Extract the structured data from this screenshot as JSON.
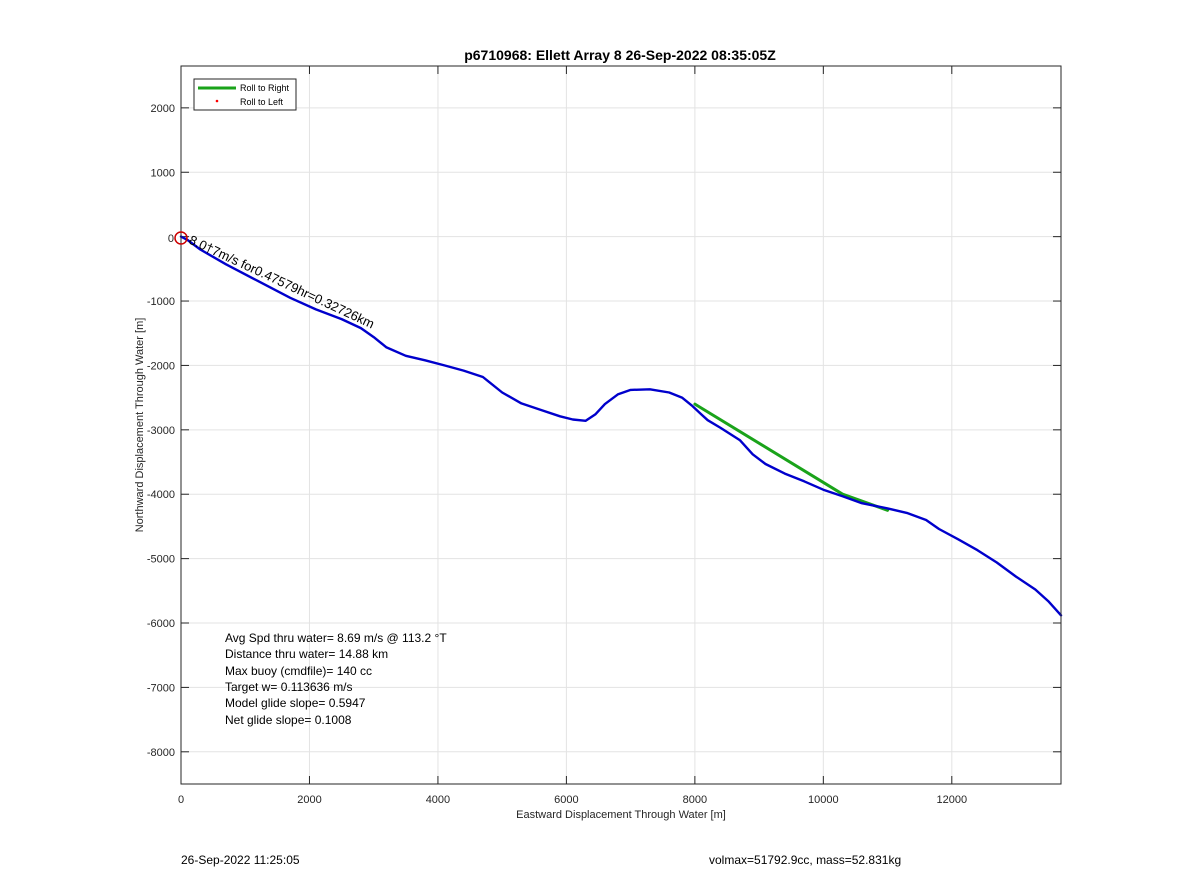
{
  "chart_data": {
    "type": "line",
    "title": "p6710968: Ellett Array 8 26-Sep-2022 08:35:05Z",
    "xlabel": "Eastward Displacement Through Water [m]",
    "ylabel": "Northward Displacement Through Water [m]",
    "xlim": [
      0,
      13700
    ],
    "ylim": [
      -8500,
      2650
    ],
    "xticks": [
      0,
      2000,
      4000,
      6000,
      8000,
      10000,
      12000
    ],
    "yticks": [
      2000,
      1000,
      0,
      -1000,
      -2000,
      -3000,
      -4000,
      -5000,
      -6000,
      -7000,
      -8000
    ],
    "ytick_labels": [
      "2000",
      "1000",
      "0",
      "-1000",
      "-2000",
      "-3000",
      "-4000",
      "-5000",
      "-6000",
      "-7000",
      "-8000"
    ],
    "grid": true,
    "legend_position": "top-left",
    "series": [
      {
        "name": "Roll to Right",
        "color": "#1aa31a",
        "style": "line",
        "x": [
          8000,
          10300,
          11000
        ],
        "y": [
          -2600,
          -4000,
          -4250
        ]
      },
      {
        "name": "Roll to Left",
        "color": "#ff0000",
        "style": "dot",
        "x": [],
        "y": []
      },
      {
        "name": "track",
        "color": "#0000cc",
        "style": "line",
        "x": [
          0,
          100,
          300,
          700,
          1200,
          1700,
          2100,
          2500,
          2800,
          3000,
          3200,
          3500,
          3800,
          4100,
          4400,
          4700,
          5000,
          5300,
          5600,
          5900,
          6100,
          6300,
          6450,
          6600,
          6800,
          7000,
          7300,
          7600,
          7800,
          7950,
          8100,
          8200,
          8400,
          8700,
          8900,
          9100,
          9400,
          9700,
          10000,
          10300,
          10600,
          11000,
          11300,
          11600,
          11800,
          12100,
          12400,
          12700,
          13000,
          13300,
          13500,
          13700
        ],
        "y": [
          0,
          -50,
          -200,
          -430,
          -690,
          -950,
          -1130,
          -1280,
          -1420,
          -1560,
          -1720,
          -1850,
          -1920,
          -2000,
          -2080,
          -2180,
          -2420,
          -2590,
          -2690,
          -2790,
          -2840,
          -2860,
          -2760,
          -2600,
          -2450,
          -2380,
          -2370,
          -2420,
          -2500,
          -2620,
          -2760,
          -2850,
          -2970,
          -3160,
          -3380,
          -3530,
          -3680,
          -3800,
          -3930,
          -4030,
          -4140,
          -4220,
          -4290,
          -4400,
          -4540,
          -4700,
          -4870,
          -5060,
          -5280,
          -5480,
          -5660,
          -5880
        ]
      }
    ],
    "annotations": {
      "start_marker": "0",
      "rotated_label": "8.0†7m/s for0.47579hr=0.32726km",
      "stats": [
        "Avg Spd thru water=  8.69 m/s @ 113.2 °T",
        "Distance thru water= 14.88 km",
        "Max buoy (cmdfile)= 140 cc",
        "Target w= 0.113636 m/s",
        "Model glide slope= 0.5947",
        "Net glide slope= 0.1008"
      ]
    },
    "footer": {
      "left": "26-Sep-2022 11:25:05",
      "right": "volmax=51792.9cc, mass=52.831kg"
    }
  }
}
